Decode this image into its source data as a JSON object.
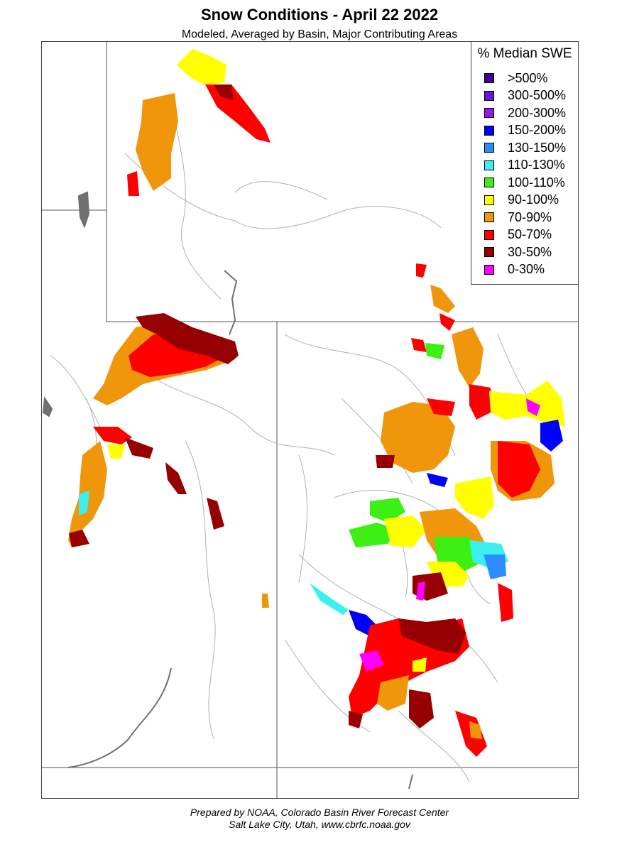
{
  "header": {
    "title": "Snow Conditions - April 22 2022",
    "subtitle": "Modeled, Averaged by Basin, Major Contributing Areas"
  },
  "legend": {
    "title": "% Median SWE",
    "items": [
      {
        "label": ">500%",
        "color": "#3c0096"
      },
      {
        "label": "300-500%",
        "color": "#6a14dc"
      },
      {
        "label": "200-300%",
        "color": "#9a14f0"
      },
      {
        "label": "150-200%",
        "color": "#0000ff"
      },
      {
        "label": "130-150%",
        "color": "#2d8cff"
      },
      {
        "label": "110-130%",
        "color": "#3cf0f0"
      },
      {
        "label": "100-110%",
        "color": "#3cf014"
      },
      {
        "label": "90-100%",
        "color": "#ffff00"
      },
      {
        "label": "70-90%",
        "color": "#f0960a"
      },
      {
        "label": "50-70%",
        "color": "#ff0000"
      },
      {
        "label": "30-50%",
        "color": "#960000"
      },
      {
        "label": "0-30%",
        "color": "#ff00ff"
      }
    ]
  },
  "footer": {
    "line1": "Prepared by NOAA, Colorado Basin River Forecast Center",
    "line2": "Salt Lake City, Utah, www.cbrfc.noaa.gov"
  }
}
